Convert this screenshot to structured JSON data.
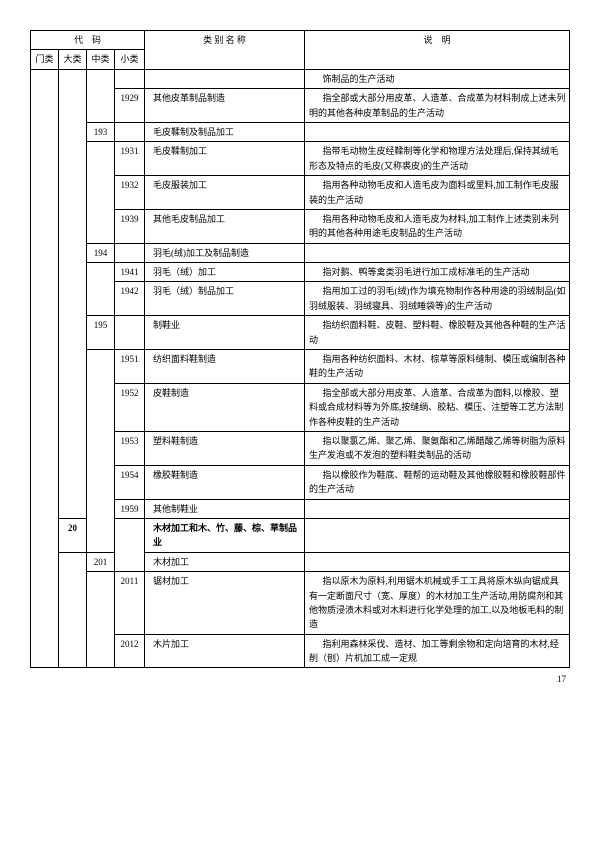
{
  "header": {
    "code_group": "代　码",
    "col_cat1": "门类",
    "col_cat2": "大类",
    "col_cat3": "中类",
    "col_cat4": "小类",
    "col_name": "类 别 名 称",
    "col_desc": "说　明"
  },
  "rows": [
    {
      "c1": "",
      "c2": "",
      "c3": "",
      "c4": "",
      "name": "",
      "desc": "饰制品的生产活动"
    },
    {
      "c1": "",
      "c2": "",
      "c3": "",
      "c4": "1929",
      "name": "其他皮革制品制造",
      "desc": "指全部或大部分用皮革、人造革、合成革为材料制成上述未列明的其他各种皮革制品的生产活动"
    },
    {
      "c1": "",
      "c2": "",
      "c3": "193",
      "c4": "",
      "name": "毛皮鞣制及制品加工",
      "desc": ""
    },
    {
      "c1": "",
      "c2": "",
      "c3": "",
      "c4": "1931",
      "name": "毛皮鞣制加工",
      "desc": "指带毛动物生皮经鞣制等化学和物理方法处理后,保持其绒毛形态及特点的毛皮(又称裘皮)的生产活动"
    },
    {
      "c1": "",
      "c2": "",
      "c3": "",
      "c4": "1932",
      "name": "毛皮服装加工",
      "desc": "指用各种动物毛皮和人造毛皮为面料或里料,加工制作毛皮服装的生产活动"
    },
    {
      "c1": "",
      "c2": "",
      "c3": "",
      "c4": "1939",
      "name": "其他毛皮制品加工",
      "desc": "指用各种动物毛皮和人造毛皮为材料,加工制作上述类别未列明的其他各种用途毛皮制品的生产活动"
    },
    {
      "c1": "",
      "c2": "",
      "c3": "194",
      "c4": "",
      "name": "羽毛(绒)加工及制品制造",
      "desc": ""
    },
    {
      "c1": "",
      "c2": "",
      "c3": "",
      "c4": "1941",
      "name": "羽毛（绒）加工",
      "desc": "指对鹅、鸭等禽类羽毛进行加工成标准毛的生产活动"
    },
    {
      "c1": "",
      "c2": "",
      "c3": "",
      "c4": "1942",
      "name": "羽毛（绒）制品加工",
      "desc": "指用加工过的羽毛(绒)作为填充物制作各种用途的羽绒制品(如羽绒服装、羽绒寝具、羽绒睡袋等)的生产活动"
    },
    {
      "c1": "",
      "c2": "",
      "c3": "195",
      "c4": "",
      "name": "制鞋业",
      "desc": "指纺织面料鞋、皮鞋、塑料鞋、橡胶鞋及其他各种鞋的生产活动"
    },
    {
      "c1": "",
      "c2": "",
      "c3": "",
      "c4": "1951",
      "name": "纺织面料鞋制造",
      "desc": "指用各种纺织面料、木材、棕草等原料缝制、模压或编制各种鞋的生产活动"
    },
    {
      "c1": "",
      "c2": "",
      "c3": "",
      "c4": "1952",
      "name": "皮鞋制造",
      "desc": "指全部或大部分用皮革、人造革、合成革为面料,以橡胶、塑料或合成材料等为外底,按缝绱、胶粘、模压、注塑等工艺方法制作各种皮鞋的生产活动"
    },
    {
      "c1": "",
      "c2": "",
      "c3": "",
      "c4": "1953",
      "name": "塑料鞋制造",
      "desc": "指以聚氯乙烯、聚乙烯、聚氨酯和乙烯醋酸乙烯等树脂为原料生产发泡或不发泡的塑料鞋类制品的活动"
    },
    {
      "c1": "",
      "c2": "",
      "c3": "",
      "c4": "1954",
      "name": "橡胶鞋制造",
      "desc": "指以橡胶作为鞋底、鞋帮的运动鞋及其他橡胶鞋和橡胶鞋部件的生产活动"
    },
    {
      "c1": "",
      "c2": "",
      "c3": "",
      "c4": "1959",
      "name": "其他制鞋业",
      "desc": ""
    },
    {
      "c1": "",
      "c2": "20",
      "c3": "",
      "c4": "",
      "name": "木材加工和木、竹、藤、棕、草制品业",
      "name_bold": true,
      "desc": ""
    },
    {
      "c1": "",
      "c2": "",
      "c3": "201",
      "c4": "",
      "name": "木材加工",
      "desc": ""
    },
    {
      "c1": "",
      "c2": "",
      "c3": "",
      "c4": "2011",
      "name": "锯材加工",
      "desc": "指以原木为原料,利用锯木机械或手工工具将原木纵向锯成具有一定断面尺寸（宽、厚度）的木材加工生产活动,用防腐剂和其他物质浸渍木料或对木料进行化学处理的加工,以及地板毛料的制造"
    },
    {
      "c1": "",
      "c2": "",
      "c3": "",
      "c4": "2012",
      "name": "木片加工",
      "desc": "指利用森林采伐、造材、加工等剩余物和定向培育的木材,经削（刨）片机加工成一定规"
    }
  ],
  "page_number": "17"
}
